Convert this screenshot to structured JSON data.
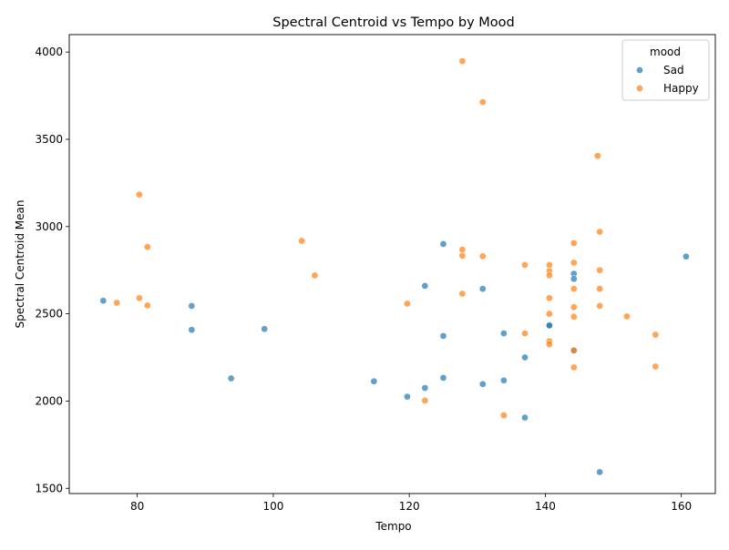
{
  "chart_data": {
    "type": "scatter",
    "title": "Spectral Centroid vs Tempo by Mood",
    "xlabel": "Tempo",
    "ylabel": "Spectral Centroid Mean",
    "xlim": [
      70,
      165
    ],
    "ylim": [
      1470,
      4100
    ],
    "xticks": [
      80,
      100,
      120,
      140,
      160
    ],
    "yticks": [
      1500,
      2000,
      2500,
      3000,
      3500,
      4000
    ],
    "grid": false,
    "legend": {
      "title": "mood",
      "placement": "top-right"
    },
    "series": [
      {
        "name": "Sad",
        "color": "#1f77b4",
        "points": [
          [
            75.0,
            2575
          ],
          [
            88.0,
            2545
          ],
          [
            88.0,
            2408
          ],
          [
            93.8,
            2130
          ],
          [
            98.7,
            2413
          ],
          [
            114.8,
            2113
          ],
          [
            119.7,
            2025
          ],
          [
            122.3,
            2075
          ],
          [
            122.3,
            2660
          ],
          [
            125.0,
            2900
          ],
          [
            125.0,
            2373
          ],
          [
            125.0,
            2133
          ],
          [
            130.8,
            2643
          ],
          [
            130.8,
            2097
          ],
          [
            133.9,
            2388
          ],
          [
            133.9,
            2118
          ],
          [
            137.0,
            2250
          ],
          [
            137.0,
            1905
          ],
          [
            140.6,
            2435
          ],
          [
            140.6,
            2433
          ],
          [
            144.2,
            2730
          ],
          [
            144.2,
            2700
          ],
          [
            144.2,
            2290
          ],
          [
            148.0,
            1593
          ],
          [
            160.7,
            2828
          ]
        ]
      },
      {
        "name": "Happy",
        "color": "#ff7f0e",
        "points": [
          [
            77.0,
            2563
          ],
          [
            80.3,
            2590
          ],
          [
            80.3,
            3183
          ],
          [
            81.5,
            2883
          ],
          [
            81.5,
            2548
          ],
          [
            104.2,
            2918
          ],
          [
            106.1,
            2720
          ],
          [
            119.7,
            2558
          ],
          [
            122.3,
            2003
          ],
          [
            127.8,
            3948
          ],
          [
            127.8,
            2868
          ],
          [
            127.8,
            2833
          ],
          [
            127.8,
            2615
          ],
          [
            130.8,
            3713
          ],
          [
            130.8,
            2830
          ],
          [
            133.9,
            1918
          ],
          [
            137.0,
            2780
          ],
          [
            137.0,
            2388
          ],
          [
            140.6,
            2780
          ],
          [
            140.6,
            2745
          ],
          [
            140.6,
            2720
          ],
          [
            140.6,
            2590
          ],
          [
            140.6,
            2500
          ],
          [
            140.6,
            2343
          ],
          [
            140.6,
            2325
          ],
          [
            144.2,
            2905
          ],
          [
            144.2,
            2793
          ],
          [
            144.2,
            2643
          ],
          [
            144.2,
            2538
          ],
          [
            144.2,
            2483
          ],
          [
            144.2,
            2290
          ],
          [
            144.2,
            2193
          ],
          [
            147.7,
            3405
          ],
          [
            148.0,
            2970
          ],
          [
            148.0,
            2750
          ],
          [
            148.0,
            2643
          ],
          [
            148.0,
            2545
          ],
          [
            152.0,
            2485
          ],
          [
            156.2,
            2380
          ],
          [
            156.2,
            2198
          ]
        ]
      }
    ]
  }
}
